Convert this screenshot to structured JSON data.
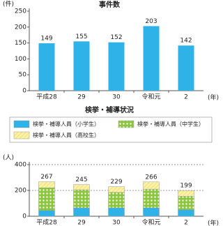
{
  "chart_data": [
    {
      "type": "bar",
      "title": "事件数",
      "y_label": "(件)",
      "x_label": "(年)",
      "categories": [
        "平成28",
        "29",
        "30",
        "令和元",
        "2"
      ],
      "values": [
        149,
        155,
        152,
        203,
        142
      ],
      "color": "#2fb2e8",
      "ylim": [
        0,
        250
      ],
      "yticks": [
        0,
        50,
        100,
        150,
        200,
        250
      ],
      "grid": false
    },
    {
      "type": "stacked_bar",
      "title": "検挙・補導状況",
      "y_label": "(人)",
      "x_label": "(年)",
      "categories": [
        "平成28",
        "29",
        "30",
        "令和元",
        "2"
      ],
      "series": [
        {
          "name": "検挙・補導人員（小学生）",
          "color": "#2fb2e8",
          "values": [
            45,
            65,
            65,
            65,
            50
          ]
        },
        {
          "name": "検挙・補導人員（中学生）",
          "color": "#8cc63f",
          "values": [
            175,
            140,
            120,
            145,
            105
          ]
        },
        {
          "name": "検挙・補導人員（高校生）",
          "color": "#fdf3a8",
          "values": [
            47,
            40,
            44,
            56,
            44
          ]
        }
      ],
      "totals": [
        267,
        245,
        229,
        266,
        199
      ],
      "ylim": [
        0,
        400
      ],
      "yticks": [
        0,
        200,
        400
      ],
      "grid": true
    }
  ]
}
